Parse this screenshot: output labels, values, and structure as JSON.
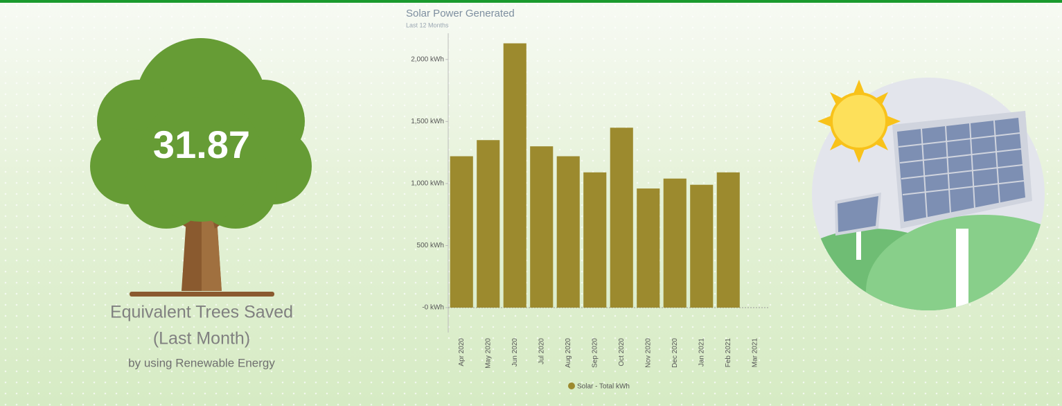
{
  "tree_widget": {
    "value": 31.87,
    "caption_line1": "Equivalent Trees Saved",
    "caption_line2": "(Last Month)",
    "caption_line3": "by using Renewable Energy"
  },
  "chart_data": {
    "type": "bar",
    "title": "Solar Power Generated",
    "subtitle": "Last 12 Months",
    "categories": [
      "Apr 2020",
      "May 2020",
      "Jun 2020",
      "Jul 2020",
      "Aug 2020",
      "Sep 2020",
      "Oct 2020",
      "Nov 2020",
      "Dec 2020",
      "Jan 2021",
      "Feb 2021",
      "Mar 2021"
    ],
    "series": [
      {
        "name": "Solar - Total kWh",
        "color": "#9c8a2e",
        "values": [
          1220,
          1350,
          2130,
          1300,
          1220,
          1090,
          1450,
          960,
          1040,
          990,
          1090,
          null
        ]
      }
    ],
    "ylim": [
      0,
      2200
    ],
    "yticks": [
      {
        "value": 0,
        "label": "-0 kWh"
      },
      {
        "value": 500,
        "label": "500 kWh"
      },
      {
        "value": 1000,
        "label": "1,000 kWh"
      },
      {
        "value": 1500,
        "label": "1,500 kWh"
      },
      {
        "value": 2000,
        "label": "2,000 kWh"
      }
    ],
    "legend": "bottom"
  }
}
